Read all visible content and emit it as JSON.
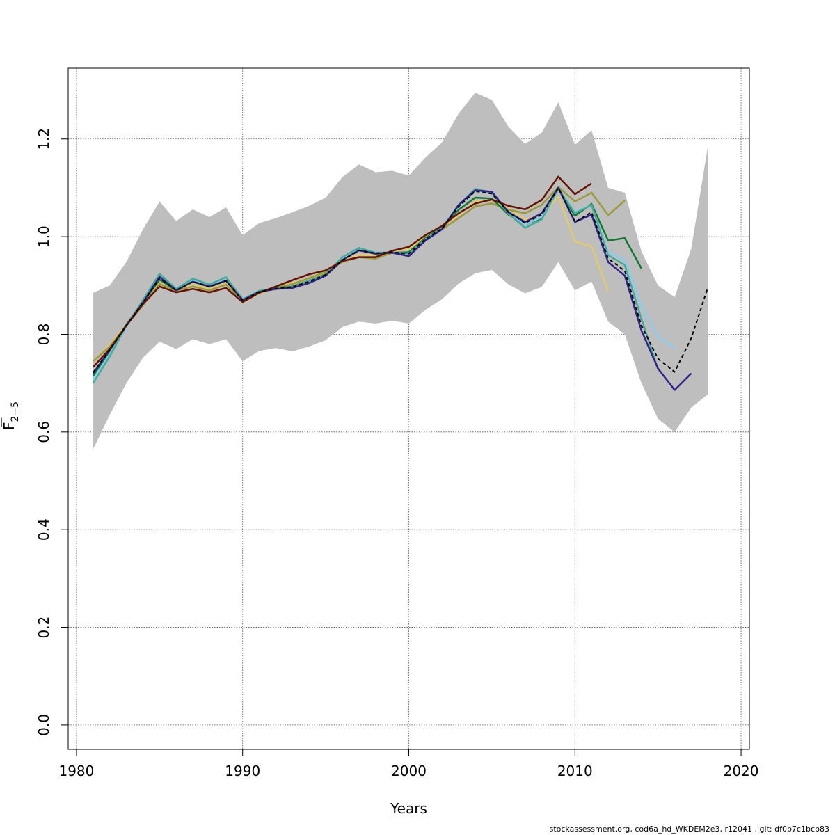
{
  "chart_data": {
    "type": "line",
    "title": "",
    "xlabel": "Years",
    "ylabel": "F",
    "ylabel_subscript": "2−5",
    "xlim": [
      1979.5,
      2020.5
    ],
    "ylim": [
      -0.05,
      1.345
    ],
    "x_ticks": [
      1980,
      1990,
      2000,
      2010,
      2020
    ],
    "y_ticks": [
      0.0,
      0.2,
      0.4,
      0.6,
      0.8,
      1.0,
      1.2
    ],
    "x_tick_labels": [
      "1980",
      "1990",
      "2000",
      "2010",
      "2020"
    ],
    "y_tick_labels": [
      "0.0",
      "0.2",
      "0.4",
      "0.6",
      "0.8",
      "1.0",
      "1.2"
    ],
    "grid": true,
    "band": {
      "color": "#bebebe",
      "x": [
        1981,
        1982,
        1983,
        1984,
        1985,
        1986,
        1987,
        1988,
        1989,
        1990,
        1991,
        1992,
        1993,
        1994,
        1995,
        1996,
        1997,
        1998,
        1999,
        2000,
        2001,
        2002,
        2003,
        2004,
        2005,
        2006,
        2007,
        2008,
        2009,
        2010,
        2011,
        2012,
        2013,
        2014,
        2015,
        2016,
        2017,
        2018
      ],
      "upper": [
        0.885,
        0.9,
        0.948,
        1.015,
        1.072,
        1.032,
        1.056,
        1.04,
        1.06,
        1.003,
        1.028,
        1.038,
        1.05,
        1.063,
        1.08,
        1.122,
        1.148,
        1.132,
        1.135,
        1.125,
        1.162,
        1.193,
        1.252,
        1.295,
        1.28,
        1.225,
        1.19,
        1.213,
        1.275,
        1.188,
        1.218,
        1.1,
        1.09,
        0.97,
        0.9,
        0.876,
        0.975,
        1.185
      ],
      "lower": [
        0.565,
        0.635,
        0.7,
        0.752,
        0.785,
        0.77,
        0.79,
        0.78,
        0.79,
        0.745,
        0.766,
        0.772,
        0.765,
        0.775,
        0.788,
        0.815,
        0.826,
        0.822,
        0.828,
        0.822,
        0.85,
        0.872,
        0.904,
        0.925,
        0.932,
        0.902,
        0.884,
        0.897,
        0.948,
        0.89,
        0.908,
        0.826,
        0.8,
        0.7,
        0.627,
        0.6,
        0.65,
        0.677
      ]
    },
    "series": [
      {
        "color": "#e2c96e",
        "x": [
          1981,
          1982,
          1983,
          1984,
          1985,
          1986,
          1987,
          1988,
          1989,
          1990,
          1991,
          1992,
          1993,
          1994,
          1995,
          1996,
          1997,
          1998,
          1999,
          2000,
          2001,
          2002,
          2003,
          2004,
          2005,
          2006,
          2007,
          2008,
          2009,
          2010,
          2011,
          2012
        ],
        "values": [
          0.745,
          0.778,
          0.82,
          0.862,
          0.905,
          0.89,
          0.903,
          0.893,
          0.905,
          0.865,
          0.884,
          0.897,
          0.905,
          0.915,
          0.925,
          0.95,
          0.963,
          0.962,
          0.97,
          0.975,
          1.0,
          1.02,
          1.045,
          1.072,
          1.075,
          1.058,
          1.035,
          1.045,
          1.082,
          0.99,
          0.98,
          0.887
        ]
      },
      {
        "color": "#9a9a3a",
        "x": [
          1981,
          1982,
          1983,
          1984,
          1985,
          1986,
          1987,
          1988,
          1989,
          1990,
          1991,
          1992,
          1993,
          1994,
          1995,
          1996,
          1997,
          1998,
          1999,
          2000,
          2001,
          2002,
          2003,
          2004,
          2005,
          2006,
          2007,
          2008,
          2009,
          2010,
          2011,
          2012,
          2013
        ],
        "values": [
          0.745,
          0.775,
          0.818,
          0.86,
          0.903,
          0.89,
          0.898,
          0.89,
          0.902,
          0.868,
          0.887,
          0.896,
          0.903,
          0.915,
          0.928,
          0.948,
          0.958,
          0.955,
          0.967,
          0.968,
          0.998,
          1.015,
          1.038,
          1.062,
          1.068,
          1.055,
          1.048,
          1.065,
          1.102,
          1.072,
          1.09,
          1.044,
          1.074
        ]
      },
      {
        "color": "#117733",
        "x": [
          1981,
          1982,
          1983,
          1984,
          1985,
          1986,
          1987,
          1988,
          1989,
          1990,
          1991,
          1992,
          1993,
          1994,
          1995,
          1996,
          1997,
          1998,
          1999,
          2000,
          2001,
          2002,
          2003,
          2004,
          2005,
          2006,
          2007,
          2008,
          2009,
          2010,
          2011,
          2012,
          2013,
          2014
        ],
        "values": [
          0.715,
          0.765,
          0.82,
          0.865,
          0.912,
          0.89,
          0.908,
          0.898,
          0.91,
          0.87,
          0.888,
          0.895,
          0.898,
          0.91,
          0.923,
          0.953,
          0.972,
          0.965,
          0.967,
          0.968,
          0.997,
          1.02,
          1.055,
          1.08,
          1.078,
          1.045,
          1.025,
          1.038,
          1.1,
          1.043,
          1.067,
          0.992,
          0.997,
          0.935
        ]
      },
      {
        "color": "#88ccee",
        "x": [
          1981,
          1982,
          1983,
          1984,
          1985,
          1986,
          1987,
          1988,
          1989,
          1990,
          1991,
          1992,
          1993,
          1994,
          1995,
          1996,
          1997,
          1998,
          1999,
          2000,
          2001,
          2002,
          2003,
          2004,
          2005,
          2006,
          2007,
          2008,
          2009,
          2010,
          2011,
          2012,
          2013,
          2014,
          2015,
          2016
        ],
        "values": [
          0.708,
          0.76,
          0.815,
          0.868,
          0.918,
          0.892,
          0.91,
          0.9,
          0.912,
          0.87,
          0.887,
          0.894,
          0.896,
          0.908,
          0.922,
          0.955,
          0.975,
          0.967,
          0.968,
          0.965,
          0.995,
          1.018,
          1.062,
          1.095,
          1.088,
          1.048,
          1.025,
          1.04,
          1.098,
          1.05,
          1.065,
          0.968,
          0.952,
          0.858,
          0.795,
          0.772
        ]
      },
      {
        "color": "#44aa99",
        "x": [
          1981,
          1982,
          1983,
          1984,
          1985,
          1986,
          1987,
          1988,
          1989,
          1990,
          1991,
          1992,
          1993,
          1994,
          1995,
          1996,
          1997,
          1998,
          1999,
          2000,
          2001,
          2002,
          2003,
          2004,
          2005,
          2006,
          2007,
          2008,
          2009,
          2010,
          2011,
          2012,
          2013,
          2014,
          2015
        ],
        "values": [
          0.7,
          0.755,
          0.818,
          0.87,
          0.924,
          0.893,
          0.914,
          0.902,
          0.917,
          0.872,
          0.889,
          0.895,
          0.897,
          0.91,
          0.922,
          0.958,
          0.977,
          0.967,
          0.968,
          0.965,
          0.995,
          1.018,
          1.065,
          1.098,
          1.09,
          1.047,
          1.018,
          1.035,
          1.098,
          1.048,
          1.065,
          0.962,
          0.942,
          0.832,
          0.728
        ]
      },
      {
        "color": "#332288",
        "x": [
          1981,
          1982,
          1983,
          1984,
          1985,
          1986,
          1987,
          1988,
          1989,
          1990,
          1991,
          1992,
          1993,
          1994,
          1995,
          1996,
          1997,
          1998,
          1999,
          2000,
          2001,
          2002,
          2003,
          2004,
          2005,
          2006,
          2007,
          2008,
          2009,
          2010,
          2011,
          2012,
          2013,
          2014,
          2015,
          2016,
          2017
        ],
        "values": [
          0.72,
          0.768,
          0.818,
          0.865,
          0.918,
          0.89,
          0.908,
          0.898,
          0.91,
          0.87,
          0.887,
          0.893,
          0.895,
          0.905,
          0.92,
          0.952,
          0.972,
          0.965,
          0.967,
          0.96,
          0.992,
          1.015,
          1.065,
          1.095,
          1.092,
          1.05,
          1.03,
          1.048,
          1.1,
          1.03,
          1.045,
          0.948,
          0.92,
          0.808,
          0.73,
          0.686,
          0.72
        ]
      },
      {
        "color": "#661100",
        "x": [
          1981,
          1982,
          1983,
          1984,
          1985,
          1986,
          1987,
          1988,
          1989,
          1990,
          1991,
          1992,
          1993,
          1994,
          1995,
          1996,
          1997,
          1998,
          1999,
          2000,
          2001,
          2002,
          2003,
          2004,
          2005,
          2006,
          2007,
          2008,
          2009,
          2010,
          2011
        ],
        "values": [
          0.733,
          0.77,
          0.818,
          0.862,
          0.898,
          0.886,
          0.893,
          0.886,
          0.895,
          0.866,
          0.885,
          0.898,
          0.911,
          0.923,
          0.931,
          0.95,
          0.958,
          0.958,
          0.971,
          0.979,
          1.003,
          1.022,
          1.048,
          1.068,
          1.076,
          1.063,
          1.056,
          1.075,
          1.123,
          1.087,
          1.109
        ]
      },
      {
        "color": "#000000",
        "dashed": true,
        "x": [
          1981,
          1982,
          1983,
          1984,
          1985,
          1986,
          1987,
          1988,
          1989,
          1990,
          1991,
          1992,
          1993,
          1994,
          1995,
          1996,
          1997,
          1998,
          1999,
          2000,
          2001,
          2002,
          2003,
          2004,
          2005,
          2006,
          2007,
          2008,
          2009,
          2010,
          2011,
          2012,
          2013,
          2014,
          2015,
          2016,
          2017,
          2018
        ],
        "values": [
          0.722,
          0.768,
          0.818,
          0.865,
          0.915,
          0.89,
          0.908,
          0.897,
          0.91,
          0.869,
          0.887,
          0.894,
          0.897,
          0.908,
          0.922,
          0.952,
          0.972,
          0.966,
          0.968,
          0.965,
          0.995,
          1.017,
          1.062,
          1.093,
          1.088,
          1.05,
          1.028,
          1.045,
          1.1,
          1.03,
          1.05,
          0.955,
          0.93,
          0.818,
          0.75,
          0.723,
          0.792,
          0.896
        ]
      }
    ]
  },
  "footer": {
    "text": "stockassessment.org, cod6a_hd_WKDEM2e3, r12041 , git: df0b7c1bcb83"
  }
}
